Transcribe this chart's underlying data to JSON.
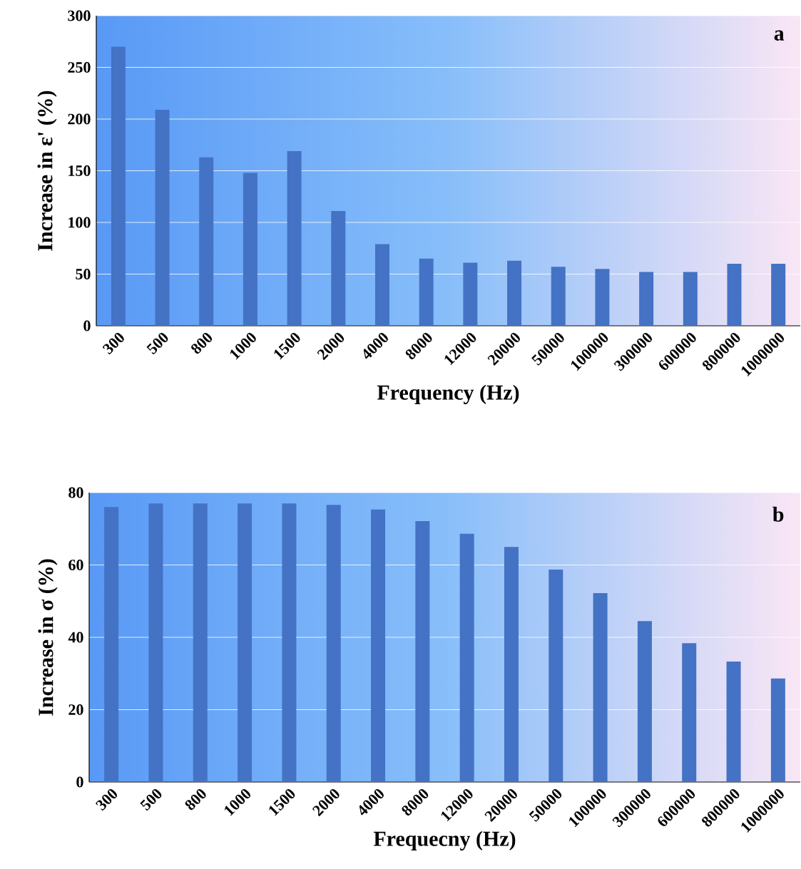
{
  "chart_data": [
    {
      "type": "bar",
      "xlabel": "Frequency (Hz)",
      "ylabel": "Increase in  ε' (%)",
      "annotations": [
        "a"
      ],
      "categories": [
        "300",
        "500",
        "800",
        "1000",
        "1500",
        "2000",
        "4000",
        "8000",
        "12000",
        "20000",
        "50000",
        "100000",
        "300000",
        "600000",
        "800000",
        "1000000"
      ],
      "values": [
        270,
        209,
        163,
        148,
        169,
        111,
        79,
        65,
        61,
        63,
        57,
        55,
        52,
        52,
        60,
        60
      ],
      "color": "#4472c4",
      "ylim": [
        0,
        300
      ],
      "yticks": [
        0,
        50,
        100,
        150,
        200,
        250,
        300
      ],
      "grid": "y"
    },
    {
      "type": "bar",
      "xlabel": "Frequecny (Hz)",
      "ylabel": "Increase in σ (%)",
      "annotations": [
        "b"
      ],
      "categories": [
        "300",
        "500",
        "800",
        "1000",
        "1500",
        "2000",
        "4000",
        "8000",
        "12000",
        "20000",
        "50000",
        "100000",
        "300000",
        "600000",
        "800000",
        "1000000"
      ],
      "values": [
        76,
        77,
        77,
        77,
        77,
        76.6,
        75.3,
        72.1,
        68.6,
        65,
        58.7,
        52.2,
        44.5,
        38.4,
        33.3,
        28.6
      ],
      "color": "#4472c4",
      "ylim": [
        0,
        80
      ],
      "yticks": [
        0,
        20,
        40,
        60,
        80
      ],
      "grid": "y"
    }
  ]
}
